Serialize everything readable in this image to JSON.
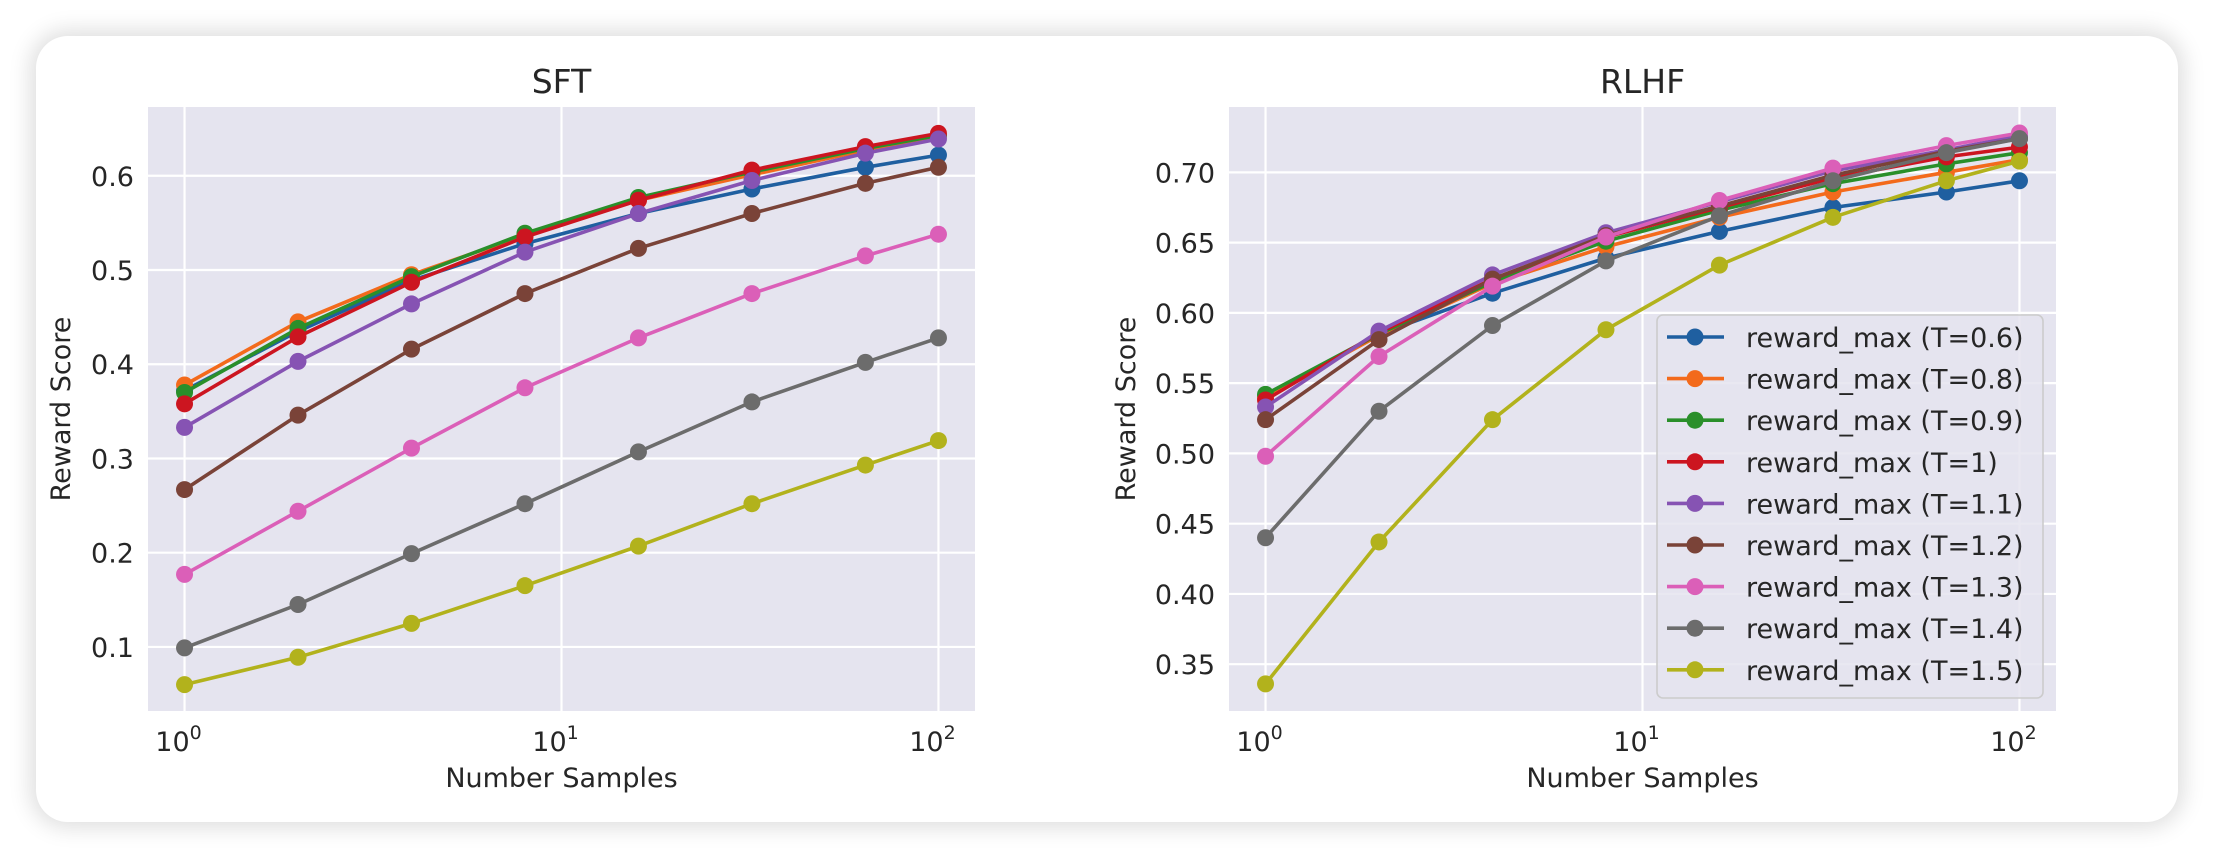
{
  "chart_data": [
    {
      "type": "line",
      "title": "SFT",
      "xlabel": "Number Samples",
      "ylabel": "Reward Score",
      "xscale": "log",
      "x": [
        1,
        2,
        4,
        8,
        16,
        32,
        64,
        100
      ],
      "xticks": [
        {
          "base": "10",
          "exp": "0",
          "value": 1
        },
        {
          "base": "10",
          "exp": "1",
          "value": 10
        },
        {
          "base": "10",
          "exp": "2",
          "value": 100
        }
      ],
      "yticks": [
        {
          "label": "0.1",
          "value": 0.1
        },
        {
          "label": "0.2",
          "value": 0.2
        },
        {
          "label": "0.3",
          "value": 0.3
        },
        {
          "label": "0.4",
          "value": 0.4
        },
        {
          "label": "0.5",
          "value": 0.5
        },
        {
          "label": "0.6",
          "value": 0.6
        }
      ],
      "ylim": [
        0.032,
        0.673
      ],
      "xlim": [
        0.8,
        125
      ],
      "grid": true,
      "legend": null,
      "series": [
        {
          "name": "reward_max (T=0.6)",
          "color": "#1f5fa0",
          "values": [
            0.372,
            0.435,
            0.489,
            0.528,
            0.56,
            0.586,
            0.609,
            0.622
          ]
        },
        {
          "name": "reward_max (T=0.8)",
          "color": "#f36a1c",
          "values": [
            0.378,
            0.445,
            0.495,
            0.537,
            0.574,
            0.601,
            0.627,
            0.642
          ]
        },
        {
          "name": "reward_max (T=0.9)",
          "color": "#2a8f2a",
          "values": [
            0.37,
            0.438,
            0.493,
            0.539,
            0.577,
            0.604,
            0.629,
            0.643
          ]
        },
        {
          "name": "reward_max (T=1)",
          "color": "#cc1520",
          "values": [
            0.358,
            0.429,
            0.487,
            0.535,
            0.574,
            0.606,
            0.631,
            0.645
          ]
        },
        {
          "name": "reward_max (T=1.1)",
          "color": "#8653b3",
          "values": [
            0.333,
            0.403,
            0.464,
            0.519,
            0.56,
            0.595,
            0.624,
            0.639
          ]
        },
        {
          "name": "reward_max (T=1.2)",
          "color": "#7a4338",
          "values": [
            0.267,
            0.346,
            0.416,
            0.475,
            0.523,
            0.56,
            0.592,
            0.609
          ]
        },
        {
          "name": "reward_max (T=1.3)",
          "color": "#db5fb8",
          "values": [
            0.177,
            0.244,
            0.311,
            0.375,
            0.428,
            0.475,
            0.515,
            0.538
          ]
        },
        {
          "name": "reward_max (T=1.4)",
          "color": "#6c6c6c",
          "values": [
            0.099,
            0.145,
            0.199,
            0.252,
            0.307,
            0.36,
            0.402,
            0.428
          ]
        },
        {
          "name": "reward_max (T=1.5)",
          "color": "#b2b21c",
          "values": [
            0.06,
            0.089,
            0.125,
            0.165,
            0.207,
            0.252,
            0.293,
            0.319
          ]
        }
      ]
    },
    {
      "type": "line",
      "title": "RLHF",
      "xlabel": "Number Samples",
      "ylabel": "Reward Score",
      "xscale": "log",
      "x": [
        1,
        2,
        4,
        8,
        16,
        32,
        64,
        100
      ],
      "xticks": [
        {
          "base": "10",
          "exp": "0",
          "value": 1
        },
        {
          "base": "10",
          "exp": "1",
          "value": 10
        },
        {
          "base": "10",
          "exp": "2",
          "value": 100
        }
      ],
      "yticks": [
        {
          "label": "0.35",
          "value": 0.35
        },
        {
          "label": "0.40",
          "value": 0.4
        },
        {
          "label": "0.45",
          "value": 0.45
        },
        {
          "label": "0.50",
          "value": 0.5
        },
        {
          "label": "0.55",
          "value": 0.55
        },
        {
          "label": "0.60",
          "value": 0.6
        },
        {
          "label": "0.65",
          "value": 0.65
        },
        {
          "label": "0.70",
          "value": 0.7
        }
      ],
      "ylim": [
        0.3167,
        0.7465
      ],
      "xlim": [
        0.8,
        125
      ],
      "grid": true,
      "legend": "lower-right",
      "series": [
        {
          "name": "reward_max (T=0.6)",
          "color": "#1f5fa0",
          "values": [
            0.541,
            0.585,
            0.614,
            0.639,
            0.658,
            0.675,
            0.686,
            0.694
          ]
        },
        {
          "name": "reward_max (T=0.8)",
          "color": "#f36a1c",
          "values": [
            0.54,
            0.584,
            0.621,
            0.647,
            0.668,
            0.686,
            0.7,
            0.709
          ]
        },
        {
          "name": "reward_max (T=0.9)",
          "color": "#2a8f2a",
          "values": [
            0.542,
            0.585,
            0.622,
            0.651,
            0.673,
            0.692,
            0.706,
            0.714
          ]
        },
        {
          "name": "reward_max (T=1)",
          "color": "#cc1520",
          "values": [
            0.538,
            0.586,
            0.624,
            0.654,
            0.675,
            0.696,
            0.711,
            0.718
          ]
        },
        {
          "name": "reward_max (T=1.1)",
          "color": "#8653b3",
          "values": [
            0.533,
            0.587,
            0.627,
            0.657,
            0.679,
            0.701,
            0.716,
            0.726
          ]
        },
        {
          "name": "reward_max (T=1.2)",
          "color": "#7a4338",
          "values": [
            0.524,
            0.581,
            0.624,
            0.655,
            0.676,
            0.698,
            0.715,
            0.724
          ]
        },
        {
          "name": "reward_max (T=1.3)",
          "color": "#db5fb8",
          "values": [
            0.498,
            0.569,
            0.619,
            0.654,
            0.68,
            0.703,
            0.719,
            0.728
          ]
        },
        {
          "name": "reward_max (T=1.4)",
          "color": "#6c6c6c",
          "values": [
            0.44,
            0.53,
            0.591,
            0.637,
            0.669,
            0.694,
            0.714,
            0.724
          ]
        },
        {
          "name": "reward_max (T=1.5)",
          "color": "#b2b21c",
          "values": [
            0.336,
            0.437,
            0.524,
            0.588,
            0.634,
            0.668,
            0.694,
            0.708
          ]
        }
      ]
    }
  ],
  "style": {
    "axes_bg": "#e5e4ef",
    "grid_color": "#ffffff",
    "text_color": "#262626",
    "legend_bg": "#e5e4ef",
    "legend_border": "#cccccc"
  }
}
